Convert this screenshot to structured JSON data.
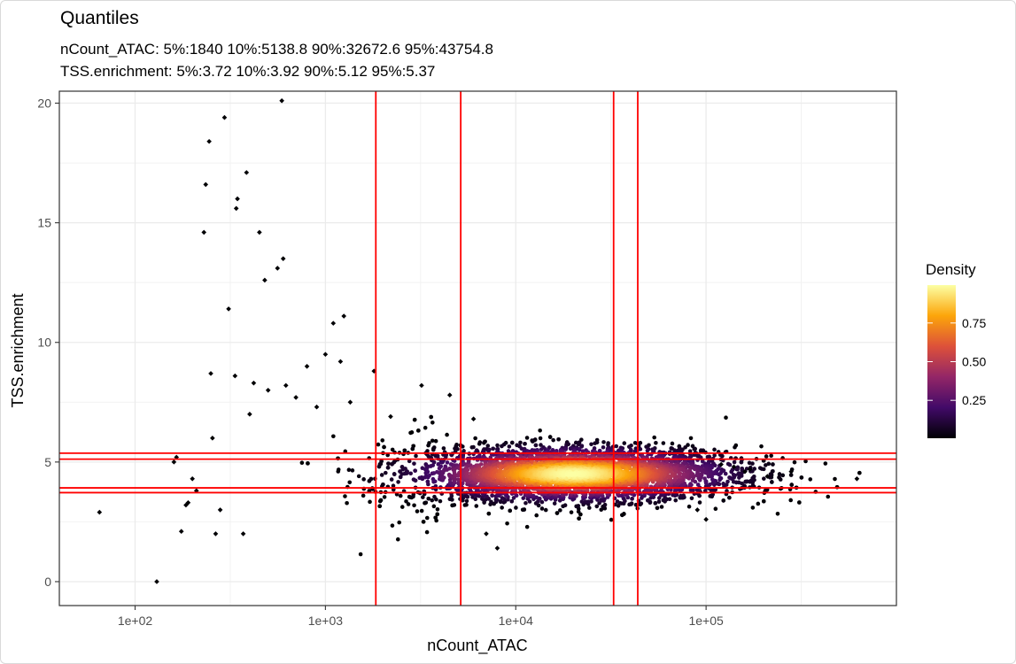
{
  "chart_data": {
    "type": "scatter",
    "title": "Quantiles",
    "subtitle_lines": [
      "nCount_ATAC: 5%:1840 10%:5138.8 90%:32672.6 95%:43754.8",
      "TSS.enrichment: 5%:3.72 10%:3.92 90%:5.12 95%:5.37"
    ],
    "xlabel": "nCount_ATAC",
    "ylabel": "TSS.enrichment",
    "x_scale": "log10",
    "xlim": [
      40,
      1000000
    ],
    "ylim": [
      -1,
      20.5
    ],
    "x_ticks": [
      100,
      1000,
      10000,
      100000
    ],
    "x_tick_labels": [
      "1e+02",
      "1e+03",
      "1e+04",
      "1e+05"
    ],
    "y_ticks": [
      0,
      5,
      10,
      15,
      20
    ],
    "y_tick_labels": [
      "0",
      "5",
      "10",
      "15",
      "20"
    ],
    "grid": true,
    "vlines": [
      1840,
      5138.8,
      32672.6,
      43754.8
    ],
    "hlines": [
      3.72,
      3.92,
      5.12,
      5.37
    ],
    "quantile_line_color": "#ff0000",
    "density_center": {
      "x": 20000,
      "y": 4.5
    },
    "legend": {
      "title": "Density",
      "position": "right",
      "ticks": [
        0.25,
        0.5,
        0.75
      ],
      "tick_labels": [
        "0.25",
        "0.50",
        "0.75"
      ],
      "colors": [
        "#000004",
        "#420a68",
        "#932667",
        "#dd513a",
        "#fca50a",
        "#fcffa4"
      ]
    },
    "outlier_points": [
      {
        "x": 65,
        "y": 2.9
      },
      {
        "x": 130,
        "y": 0.0
      },
      {
        "x": 160,
        "y": 5.0
      },
      {
        "x": 165,
        "y": 5.2
      },
      {
        "x": 175,
        "y": 2.1
      },
      {
        "x": 185,
        "y": 3.2
      },
      {
        "x": 190,
        "y": 3.3
      },
      {
        "x": 200,
        "y": 4.3
      },
      {
        "x": 210,
        "y": 3.8
      },
      {
        "x": 230,
        "y": 14.6
      },
      {
        "x": 235,
        "y": 16.6
      },
      {
        "x": 245,
        "y": 18.4
      },
      {
        "x": 250,
        "y": 8.7
      },
      {
        "x": 255,
        "y": 6.0
      },
      {
        "x": 265,
        "y": 2.0
      },
      {
        "x": 280,
        "y": 3.0
      },
      {
        "x": 295,
        "y": 19.4
      },
      {
        "x": 310,
        "y": 11.4
      },
      {
        "x": 335,
        "y": 8.6
      },
      {
        "x": 340,
        "y": 15.6
      },
      {
        "x": 345,
        "y": 16.0
      },
      {
        "x": 370,
        "y": 2.0
      },
      {
        "x": 385,
        "y": 17.1
      },
      {
        "x": 400,
        "y": 7.0
      },
      {
        "x": 420,
        "y": 8.3
      },
      {
        "x": 450,
        "y": 14.6
      },
      {
        "x": 480,
        "y": 12.6
      },
      {
        "x": 500,
        "y": 8.0
      },
      {
        "x": 560,
        "y": 13.1
      },
      {
        "x": 590,
        "y": 20.1
      },
      {
        "x": 600,
        "y": 13.5
      },
      {
        "x": 620,
        "y": 8.2
      },
      {
        "x": 700,
        "y": 7.7
      },
      {
        "x": 800,
        "y": 9.0
      },
      {
        "x": 900,
        "y": 7.3
      },
      {
        "x": 1000,
        "y": 9.5
      },
      {
        "x": 1100,
        "y": 10.8
      },
      {
        "x": 1200,
        "y": 9.2
      },
      {
        "x": 1250,
        "y": 11.1
      },
      {
        "x": 1350,
        "y": 7.5
      },
      {
        "x": 1800,
        "y": 8.8
      },
      {
        "x": 2200,
        "y": 6.9
      },
      {
        "x": 3200,
        "y": 8.2
      },
      {
        "x": 4500,
        "y": 7.8
      },
      {
        "x": 6000,
        "y": 6.8
      },
      {
        "x": 7000,
        "y": 2.0
      },
      {
        "x": 8000,
        "y": 1.4
      },
      {
        "x": 90000,
        "y": 3.0
      },
      {
        "x": 100000,
        "y": 2.6
      },
      {
        "x": 120000,
        "y": 4.9
      },
      {
        "x": 140000,
        "y": 4.8
      },
      {
        "x": 160000,
        "y": 4.6
      },
      {
        "x": 170000,
        "y": 4.7
      },
      {
        "x": 210000,
        "y": 4.4
      },
      {
        "x": 280000,
        "y": 4.6
      },
      {
        "x": 620000,
        "y": 4.3
      }
    ]
  }
}
